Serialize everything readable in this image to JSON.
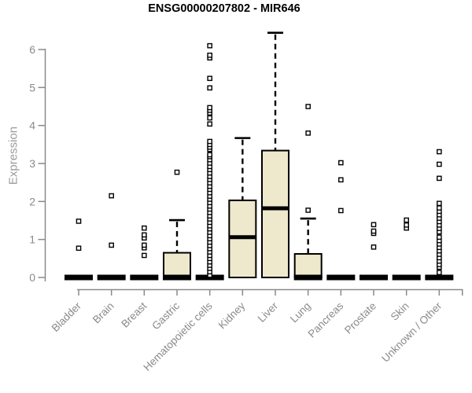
{
  "chart_data": {
    "type": "boxplot",
    "title": "ENSG00000207802 - MIR646",
    "ylabel": "Expression",
    "xlabel": "",
    "ylim": [
      0,
      6.6
    ],
    "yticks": [
      0,
      1,
      2,
      3,
      4,
      5,
      6
    ],
    "grid": false,
    "legend": "none",
    "box_fill_color": "#EEE8CD",
    "box_stroke_color": "#000000",
    "axis_color": "#8A8A8A",
    "title_color": "#000000",
    "categories": [
      "Bladder",
      "Brain",
      "Breast",
      "Gastric",
      "Hematopoietic cells",
      "Kidney",
      "Liver",
      "Lung",
      "Pancreas",
      "Prostate",
      "Skin",
      "Unknown / Other"
    ],
    "series": [
      {
        "category": "Bladder",
        "q1": 0,
        "median": 0,
        "q3": 0,
        "whisker_low": 0,
        "whisker_high": 0,
        "outliers": [
          0.77,
          1.48
        ]
      },
      {
        "category": "Brain",
        "q1": 0,
        "median": 0,
        "q3": 0,
        "whisker_low": 0,
        "whisker_high": 0,
        "outliers": [
          0.85,
          2.15
        ]
      },
      {
        "category": "Breast",
        "q1": 0,
        "median": 0,
        "q3": 0,
        "whisker_low": 0,
        "whisker_high": 0,
        "outliers": [
          0.58,
          0.78,
          0.85,
          1.04,
          1.12,
          1.3
        ]
      },
      {
        "category": "Gastric",
        "q1": 0,
        "median": 0,
        "q3": 0.65,
        "whisker_low": 0,
        "whisker_high": 1.51,
        "outliers": [
          2.77
        ]
      },
      {
        "category": "Hematopoietic cells",
        "q1": 0,
        "median": 0,
        "q3": 0,
        "whisker_low": 0,
        "whisker_high": 0,
        "outliers": [
          0.06,
          0.15,
          0.24,
          0.32,
          0.41,
          0.5,
          0.58,
          0.67,
          0.76,
          0.84,
          0.93,
          1.02,
          1.1,
          1.19,
          1.28,
          1.36,
          1.45,
          1.54,
          1.62,
          1.71,
          1.8,
          1.88,
          1.97,
          2.06,
          2.14,
          2.23,
          2.32,
          2.4,
          2.49,
          2.58,
          2.66,
          2.75,
          2.84,
          2.92,
          3.01,
          3.1,
          3.18,
          3.23,
          3.37,
          3.43,
          3.5,
          3.58,
          4.04,
          4.2,
          4.33,
          4.4,
          4.47,
          4.99,
          5.24,
          5.78,
          5.85,
          6.1
        ]
      },
      {
        "category": "Kidney",
        "q1": 0,
        "median": 1.06,
        "q3": 2.03,
        "whisker_low": 0,
        "whisker_high": 3.67,
        "outliers": []
      },
      {
        "category": "Liver",
        "q1": 0,
        "median": 1.82,
        "q3": 3.34,
        "whisker_low": 0,
        "whisker_high": 6.44,
        "outliers": []
      },
      {
        "category": "Lung",
        "q1": 0,
        "median": 0,
        "q3": 0.62,
        "whisker_low": 0,
        "whisker_high": 1.55,
        "outliers": [
          1.77,
          3.8,
          4.5
        ]
      },
      {
        "category": "Pancreas",
        "q1": 0,
        "median": 0,
        "q3": 0,
        "whisker_low": 0,
        "whisker_high": 0,
        "outliers": [
          1.76,
          2.57,
          3.02
        ]
      },
      {
        "category": "Prostate",
        "q1": 0,
        "median": 0,
        "q3": 0,
        "whisker_low": 0,
        "whisker_high": 0,
        "outliers": [
          0.8,
          1.16,
          1.22,
          1.39
        ]
      },
      {
        "category": "Skin",
        "q1": 0,
        "median": 0,
        "q3": 0,
        "whisker_low": 0,
        "whisker_high": 0,
        "outliers": [
          1.3,
          1.38,
          1.51
        ]
      },
      {
        "category": "Unknown / Other",
        "q1": 0,
        "median": 0,
        "q3": 0,
        "whisker_low": 0,
        "whisker_high": 0,
        "outliers": [
          0.13,
          0.27,
          0.34,
          0.43,
          0.52,
          0.61,
          0.7,
          0.79,
          0.88,
          0.97,
          1.06,
          1.2,
          1.29,
          1.38,
          1.47,
          1.56,
          1.65,
          1.74,
          1.83,
          1.95,
          2.61,
          2.98,
          3.31
        ]
      }
    ]
  }
}
